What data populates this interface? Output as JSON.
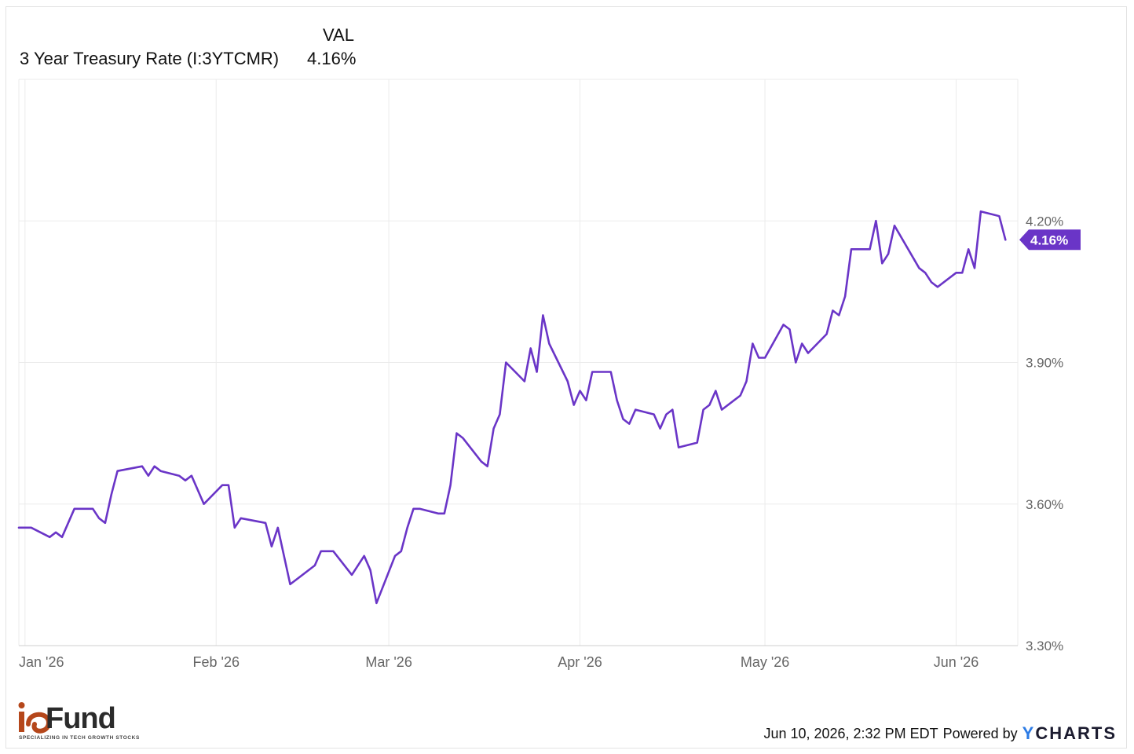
{
  "legend": {
    "header": "VAL",
    "series_name": "3 Year Treasury Rate (I:3YTCMR)",
    "series_value": "4.16%"
  },
  "footer": {
    "timestamp": "Jun 10, 2026, 2:32 PM EDT",
    "powered_by": "Powered by",
    "brand_y": "Y",
    "brand_rest": "CHARTS"
  },
  "logo": {
    "wordmark": "Fund",
    "tagline": "SPECIALIZING IN TECH GROWTH STOCKS"
  },
  "colors": {
    "line": "#6a35c7",
    "grid": "#ebebeb",
    "axis_text": "#666666",
    "badge": "#6a35c7"
  },
  "chart_data": {
    "type": "line",
    "title": "",
    "xlabel": "",
    "ylabel": "",
    "ylim": [
      3.3,
      4.5
    ],
    "yticks": [
      {
        "value": 3.3,
        "label": "3.30%"
      },
      {
        "value": 3.6,
        "label": "3.60%"
      },
      {
        "value": 3.9,
        "label": "3.90%"
      },
      {
        "value": 4.2,
        "label": "4.20%"
      }
    ],
    "xlim": [
      "2025-12-31",
      "2026-06-11"
    ],
    "xticks": [
      {
        "date": "2026-01-01",
        "label": "Jan '26"
      },
      {
        "date": "2026-02-01",
        "label": "Feb '26"
      },
      {
        "date": "2026-03-01",
        "label": "Mar '26"
      },
      {
        "date": "2026-04-01",
        "label": "Apr '26"
      },
      {
        "date": "2026-05-01",
        "label": "May '26"
      },
      {
        "date": "2026-06-01",
        "label": "Jun '26"
      }
    ],
    "last_value_label": "4.16%",
    "grid": true,
    "series": [
      {
        "name": "3 Year Treasury Rate (I:3YTCMR)",
        "points": [
          [
            "2025-12-31",
            3.55
          ],
          [
            "2026-01-02",
            3.55
          ],
          [
            "2026-01-05",
            3.53
          ],
          [
            "2026-01-06",
            3.54
          ],
          [
            "2026-01-07",
            3.53
          ],
          [
            "2026-01-09",
            3.59
          ],
          [
            "2026-01-12",
            3.59
          ],
          [
            "2026-01-13",
            3.57
          ],
          [
            "2026-01-14",
            3.56
          ],
          [
            "2026-01-15",
            3.62
          ],
          [
            "2026-01-16",
            3.67
          ],
          [
            "2026-01-20",
            3.68
          ],
          [
            "2026-01-21",
            3.66
          ],
          [
            "2026-01-22",
            3.68
          ],
          [
            "2026-01-23",
            3.67
          ],
          [
            "2026-01-26",
            3.66
          ],
          [
            "2026-01-27",
            3.65
          ],
          [
            "2026-01-28",
            3.66
          ],
          [
            "2026-01-30",
            3.6
          ],
          [
            "2026-02-02",
            3.64
          ],
          [
            "2026-02-03",
            3.64
          ],
          [
            "2026-02-04",
            3.55
          ],
          [
            "2026-02-05",
            3.57
          ],
          [
            "2026-02-09",
            3.56
          ],
          [
            "2026-02-10",
            3.51
          ],
          [
            "2026-02-11",
            3.55
          ],
          [
            "2026-02-13",
            3.43
          ],
          [
            "2026-02-17",
            3.47
          ],
          [
            "2026-02-18",
            3.5
          ],
          [
            "2026-02-20",
            3.5
          ],
          [
            "2026-02-23",
            3.45
          ],
          [
            "2026-02-25",
            3.49
          ],
          [
            "2026-02-26",
            3.46
          ],
          [
            "2026-02-27",
            3.39
          ],
          [
            "2026-03-02",
            3.49
          ],
          [
            "2026-03-03",
            3.5
          ],
          [
            "2026-03-04",
            3.55
          ],
          [
            "2026-03-05",
            3.59
          ],
          [
            "2026-03-06",
            3.59
          ],
          [
            "2026-03-09",
            3.58
          ],
          [
            "2026-03-10",
            3.58
          ],
          [
            "2026-03-11",
            3.64
          ],
          [
            "2026-03-12",
            3.75
          ],
          [
            "2026-03-13",
            3.74
          ],
          [
            "2026-03-16",
            3.69
          ],
          [
            "2026-03-17",
            3.68
          ],
          [
            "2026-03-18",
            3.76
          ],
          [
            "2026-03-19",
            3.79
          ],
          [
            "2026-03-20",
            3.9
          ],
          [
            "2026-03-23",
            3.86
          ],
          [
            "2026-03-24",
            3.93
          ],
          [
            "2026-03-25",
            3.88
          ],
          [
            "2026-03-26",
            4.0
          ],
          [
            "2026-03-27",
            3.94
          ],
          [
            "2026-03-30",
            3.86
          ],
          [
            "2026-03-31",
            3.81
          ],
          [
            "2026-04-01",
            3.84
          ],
          [
            "2026-04-02",
            3.82
          ],
          [
            "2026-04-03",
            3.88
          ],
          [
            "2026-04-06",
            3.88
          ],
          [
            "2026-04-07",
            3.82
          ],
          [
            "2026-04-08",
            3.78
          ],
          [
            "2026-04-09",
            3.77
          ],
          [
            "2026-04-10",
            3.8
          ],
          [
            "2026-04-13",
            3.79
          ],
          [
            "2026-04-14",
            3.76
          ],
          [
            "2026-04-15",
            3.79
          ],
          [
            "2026-04-16",
            3.8
          ],
          [
            "2026-04-17",
            3.72
          ],
          [
            "2026-04-20",
            3.73
          ],
          [
            "2026-04-21",
            3.8
          ],
          [
            "2026-04-22",
            3.81
          ],
          [
            "2026-04-23",
            3.84
          ],
          [
            "2026-04-24",
            3.8
          ],
          [
            "2026-04-27",
            3.83
          ],
          [
            "2026-04-28",
            3.86
          ],
          [
            "2026-04-29",
            3.94
          ],
          [
            "2026-04-30",
            3.91
          ],
          [
            "2026-05-01",
            3.91
          ],
          [
            "2026-05-04",
            3.98
          ],
          [
            "2026-05-05",
            3.97
          ],
          [
            "2026-05-06",
            3.9
          ],
          [
            "2026-05-07",
            3.94
          ],
          [
            "2026-05-08",
            3.92
          ],
          [
            "2026-05-11",
            3.96
          ],
          [
            "2026-05-12",
            4.01
          ],
          [
            "2026-05-13",
            4.0
          ],
          [
            "2026-05-14",
            4.04
          ],
          [
            "2026-05-15",
            4.14
          ],
          [
            "2026-05-18",
            4.14
          ],
          [
            "2026-05-19",
            4.2
          ],
          [
            "2026-05-20",
            4.11
          ],
          [
            "2026-05-21",
            4.13
          ],
          [
            "2026-05-22",
            4.19
          ],
          [
            "2026-05-26",
            4.1
          ],
          [
            "2026-05-27",
            4.09
          ],
          [
            "2026-05-28",
            4.07
          ],
          [
            "2026-05-29",
            4.06
          ],
          [
            "2026-06-01",
            4.09
          ],
          [
            "2026-06-02",
            4.09
          ],
          [
            "2026-06-03",
            4.14
          ],
          [
            "2026-06-04",
            4.1
          ],
          [
            "2026-06-05",
            4.22
          ],
          [
            "2026-06-08",
            4.21
          ],
          [
            "2026-06-09",
            4.16
          ]
        ]
      }
    ]
  }
}
